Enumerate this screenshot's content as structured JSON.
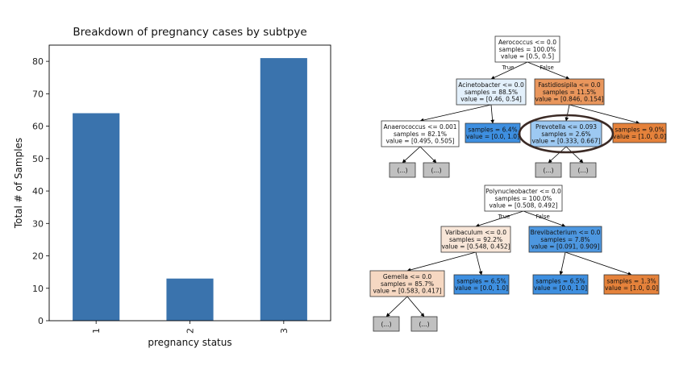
{
  "chart_data": {
    "type": "bar",
    "title": "Breakdown of pregnancy cases by subtpye",
    "xlabel": "pregnancy status",
    "ylabel": "Total # of Samples",
    "categories": [
      "1",
      "2",
      "3"
    ],
    "values": [
      64,
      13,
      81
    ],
    "ylim": [
      0,
      85
    ],
    "yticks": [
      0,
      10,
      20,
      30,
      40,
      50,
      60,
      70,
      80
    ],
    "bar_color": "#3a73ad",
    "grid": false,
    "legend": "none"
  },
  "trees": [
    {
      "id": "tree-1",
      "nodes": [
        {
          "id": "n1",
          "lines": [
            "Aerococcus <= 0.0",
            "samples = 100.0%",
            "value = [0.5, 0.5]"
          ],
          "fill": "#ffffff"
        },
        {
          "id": "n2",
          "lines": [
            "Acinetobacter <= 0.0",
            "samples = 88.5%",
            "value = [0.46, 0.54]"
          ],
          "fill": "#e3f0fb"
        },
        {
          "id": "n3",
          "lines": [
            "Fastidiosipila <= 0.0",
            "samples = 11.5%",
            "value = [0.846, 0.154]"
          ],
          "fill": "#e9965c"
        },
        {
          "id": "n4",
          "lines": [
            "Anaerococcus <= 0.001",
            "samples = 82.1%",
            "value = [0.495, 0.505]"
          ],
          "fill": "#ffffff"
        },
        {
          "id": "n5",
          "lines": [
            "samples = 6.4%",
            "value = [0.0, 1.0]"
          ],
          "fill": "#3e8fe0"
        },
        {
          "id": "n6",
          "lines": [
            "Prevotella <= 0.093",
            "samples = 2.6%",
            "value = [0.333, 0.667]"
          ],
          "fill": "#9dc9f2"
        },
        {
          "id": "n7",
          "lines": [
            "samples = 9.0%",
            "value = [1.0, 0.0]"
          ],
          "fill": "#e5823b"
        },
        {
          "id": "n8",
          "lines": [
            "(...)"
          ],
          "fill": "#c0c0c0"
        },
        {
          "id": "n9",
          "lines": [
            "(...)"
          ],
          "fill": "#c0c0c0"
        },
        {
          "id": "n10",
          "lines": [
            "(...)"
          ],
          "fill": "#c0c0c0"
        },
        {
          "id": "n11",
          "lines": [
            "(...)"
          ],
          "fill": "#c0c0c0"
        }
      ],
      "edge_labels": {
        "true": "True",
        "false": "False"
      }
    },
    {
      "id": "tree-2",
      "nodes": [
        {
          "id": "m1",
          "lines": [
            "Polynucleobacter <= 0.0",
            "samples = 100.0%",
            "value = [0.508, 0.492]"
          ],
          "fill": "#ffffff"
        },
        {
          "id": "m2",
          "lines": [
            "Varibaculum <= 0.0",
            "samples = 92.2%",
            "value = [0.548, 0.452]"
          ],
          "fill": "#f8e6d8"
        },
        {
          "id": "m3",
          "lines": [
            "Brevibacterium <= 0.0",
            "samples = 7.8%",
            "value = [0.091, 0.909]"
          ],
          "fill": "#4d97e0"
        },
        {
          "id": "m4",
          "lines": [
            "Gemella <= 0.0",
            "samples = 85.7%",
            "value = [0.583, 0.417]"
          ],
          "fill": "#f6d8c2"
        },
        {
          "id": "m5",
          "lines": [
            "samples = 6.5%",
            "value = [0.0, 1.0]"
          ],
          "fill": "#3e8fe0"
        },
        {
          "id": "m6",
          "lines": [
            "samples = 6.5%",
            "value = [0.0, 1.0]"
          ],
          "fill": "#3e8fe0"
        },
        {
          "id": "m7",
          "lines": [
            "samples = 1.3%",
            "value = [1.0, 0.0]"
          ],
          "fill": "#e5823b"
        },
        {
          "id": "m8",
          "lines": [
            "(...)"
          ],
          "fill": "#c0c0c0"
        },
        {
          "id": "m9",
          "lines": [
            "(...)"
          ],
          "fill": "#c0c0c0"
        }
      ],
      "edge_labels": {
        "true": "True",
        "false": "False"
      }
    }
  ],
  "highlight": {
    "node": "n6",
    "color": "#3b2a25"
  }
}
